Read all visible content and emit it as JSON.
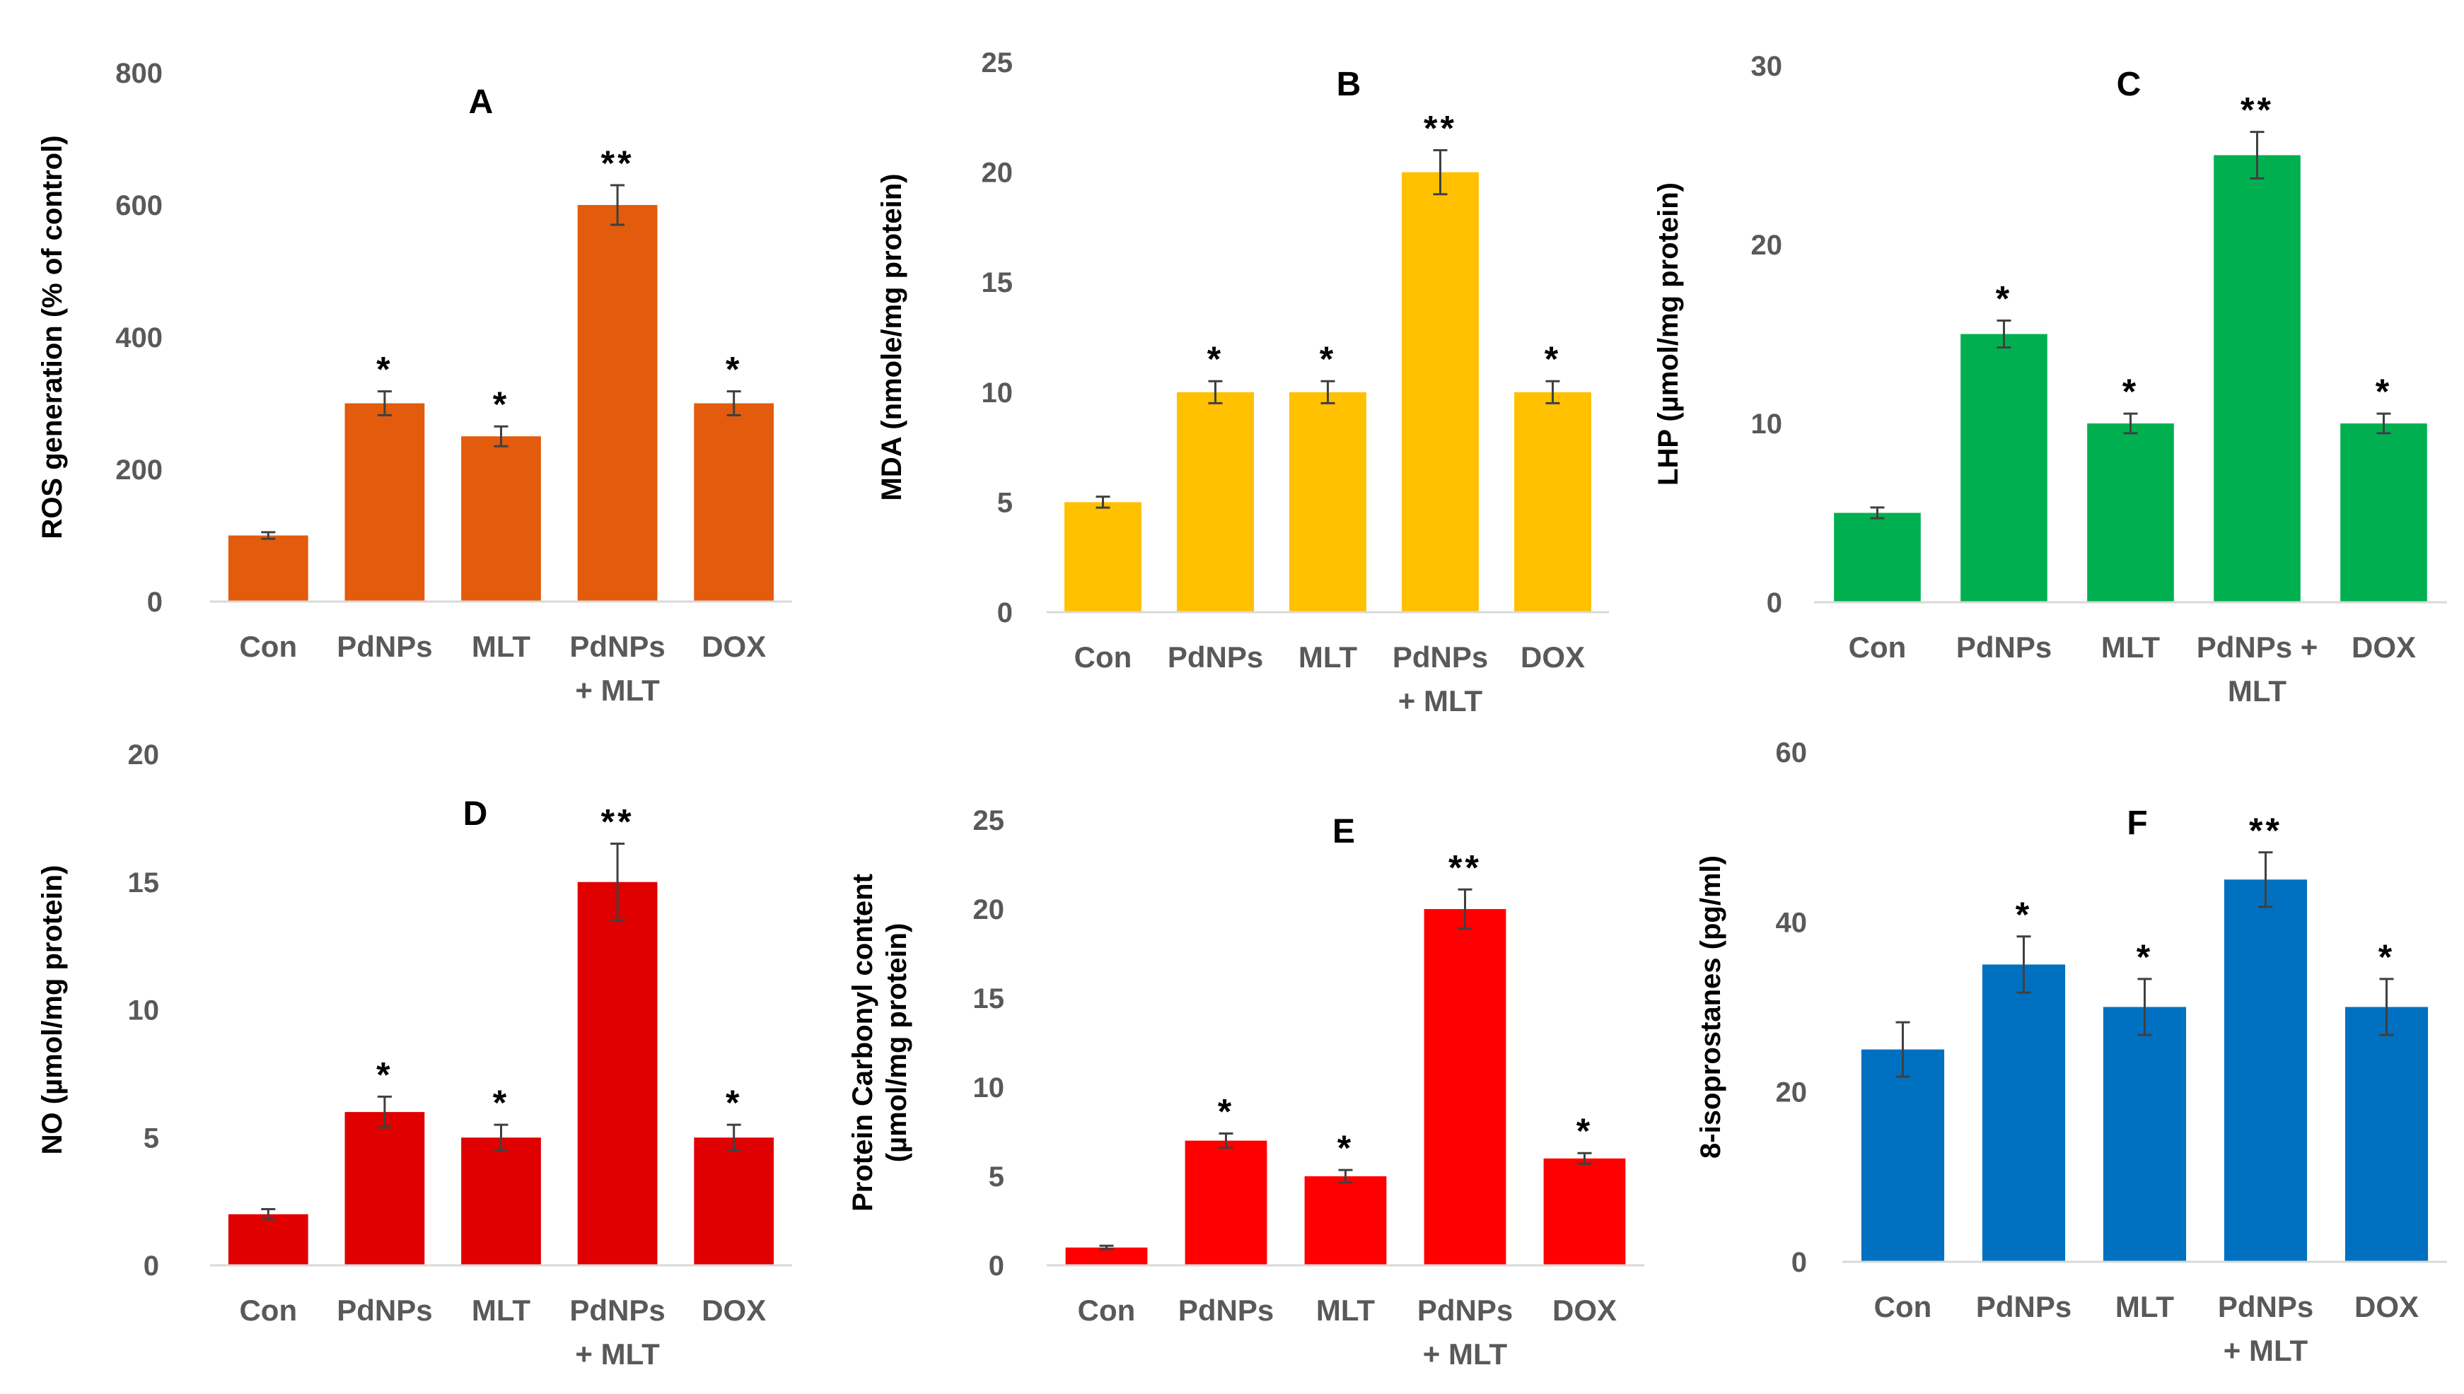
{
  "chart_data": [
    {
      "id": "A",
      "type": "bar",
      "panel_label": "A",
      "categories": [
        [
          "Con"
        ],
        [
          "PdNPs"
        ],
        [
          "MLT"
        ],
        [
          "PdNPs",
          "+ MLT"
        ],
        [
          "DOX"
        ]
      ],
      "values": [
        100,
        300,
        250,
        600,
        300
      ],
      "errors": [
        5,
        18,
        15,
        30,
        18
      ],
      "significance": [
        "",
        "*",
        "*",
        "**",
        "*"
      ],
      "ylabel": [
        "ROS generation (% of control)"
      ],
      "ylim": [
        0,
        800
      ],
      "yticks": [
        0,
        200,
        400,
        600,
        800
      ],
      "color": "#E35B0C",
      "grid": false
    },
    {
      "id": "B",
      "type": "bar",
      "panel_label": "B",
      "categories": [
        [
          "Con"
        ],
        [
          "PdNPs"
        ],
        [
          "MLT"
        ],
        [
          "PdNPs",
          "+ MLT"
        ],
        [
          "DOX"
        ]
      ],
      "values": [
        5,
        10,
        10,
        20,
        10
      ],
      "errors": [
        0.25,
        0.5,
        0.5,
        1.0,
        0.5
      ],
      "significance": [
        "",
        "*",
        "*",
        "**",
        "*"
      ],
      "ylabel": [
        "MDA (nmole/mg protein)"
      ],
      "ylim": [
        0,
        25
      ],
      "yticks": [
        0,
        5,
        10,
        15,
        20,
        25
      ],
      "color": "#FFC000",
      "grid": false
    },
    {
      "id": "C",
      "type": "bar",
      "panel_label": "C",
      "categories": [
        [
          "Con"
        ],
        [
          "PdNPs"
        ],
        [
          "MLT"
        ],
        [
          "PdNPs +",
          "MLT"
        ],
        [
          "DOX"
        ]
      ],
      "values": [
        5,
        15,
        10,
        25,
        10
      ],
      "errors": [
        0.3,
        0.75,
        0.55,
        1.3,
        0.55
      ],
      "significance": [
        "",
        "*",
        "*",
        "**",
        "*"
      ],
      "ylabel": [
        "LHP (µmol/mg protein)"
      ],
      "ylim": [
        0,
        30
      ],
      "yticks": [
        0,
        10,
        20,
        30
      ],
      "color": "#00B050",
      "grid": false
    },
    {
      "id": "D",
      "type": "bar",
      "panel_label": "D",
      "categories": [
        [
          "Con"
        ],
        [
          "PdNPs"
        ],
        [
          "MLT"
        ],
        [
          "PdNPs",
          "+ MLT"
        ],
        [
          "DOX"
        ]
      ],
      "values": [
        2,
        6,
        5,
        15,
        5
      ],
      "errors": [
        0.2,
        0.6,
        0.5,
        1.5,
        0.5
      ],
      "significance": [
        "",
        "*",
        "*",
        "**",
        "*"
      ],
      "ylabel": [
        "NO (µmol/mg  protein)"
      ],
      "ylim": [
        0,
        20
      ],
      "yticks": [
        0,
        5,
        10,
        15,
        20
      ],
      "color": "#E00000",
      "grid": false
    },
    {
      "id": "E",
      "type": "bar",
      "panel_label": "E",
      "categories": [
        [
          "Con"
        ],
        [
          "PdNPs"
        ],
        [
          "MLT"
        ],
        [
          "PdNPs",
          "+ MLT"
        ],
        [
          "DOX"
        ]
      ],
      "values": [
        1,
        7,
        5,
        20,
        6
      ],
      "errors": [
        0.1,
        0.4,
        0.35,
        1.1,
        0.3
      ],
      "significance": [
        "",
        "*",
        "*",
        "**",
        "*"
      ],
      "ylabel": [
        "Protein Carbonyl content",
        "(µmol/mg protein)"
      ],
      "ylim": [
        0,
        25
      ],
      "yticks": [
        0,
        5,
        10,
        15,
        20,
        25
      ],
      "color": "#FF0000",
      "grid": false
    },
    {
      "id": "F",
      "type": "bar",
      "panel_label": "F",
      "categories": [
        [
          "Con"
        ],
        [
          "PdNPs"
        ],
        [
          "MLT"
        ],
        [
          "PdNPs",
          "+ MLT"
        ],
        [
          "DOX"
        ]
      ],
      "values": [
        25,
        35,
        30,
        45,
        30
      ],
      "errors": [
        3.2,
        3.3,
        3.3,
        3.2,
        3.3
      ],
      "significance": [
        "",
        "*",
        "*",
        "**",
        "*"
      ],
      "ylabel": [
        "8-isoprostanes (pg/ml)"
      ],
      "ylim": [
        0,
        60
      ],
      "yticks": [
        0,
        20,
        40,
        60
      ],
      "color": "#0070C0",
      "grid": false
    }
  ]
}
